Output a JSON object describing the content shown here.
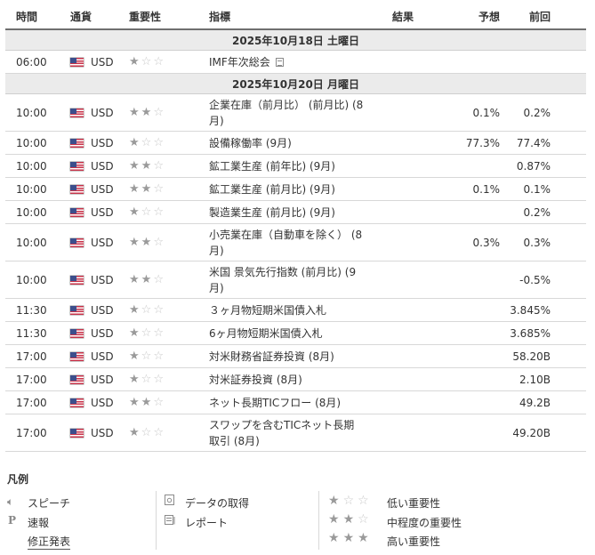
{
  "headers": {
    "time": "時間",
    "currency": "通貨",
    "importance": "重要性",
    "indicator": "指標",
    "actual": "結果",
    "forecast": "予想",
    "previous": "前回"
  },
  "days": [
    {
      "date": "2025年10月18日 土曜日",
      "events": [
        {
          "time": "06:00",
          "currency": "USD",
          "stars": 1,
          "name": [
            "IMF年次総会"
          ],
          "doc": true,
          "actual": "",
          "forecast": "",
          "previous": ""
        }
      ]
    },
    {
      "date": "2025年10月20日 月曜日",
      "events": [
        {
          "time": "10:00",
          "currency": "USD",
          "stars": 2,
          "name": [
            "企業在庫（前月比） (前月比) (8",
            "月)"
          ],
          "actual": "",
          "forecast": "0.1%",
          "previous": "0.2%"
        },
        {
          "time": "10:00",
          "currency": "USD",
          "stars": 1,
          "name": [
            "設備稼働率 (9月)"
          ],
          "actual": "",
          "forecast": "77.3%",
          "previous": "77.4%"
        },
        {
          "time": "10:00",
          "currency": "USD",
          "stars": 2,
          "name": [
            "鉱工業生産 (前年比) (9月)"
          ],
          "actual": "",
          "forecast": "",
          "previous": "0.87%"
        },
        {
          "time": "10:00",
          "currency": "USD",
          "stars": 2,
          "name": [
            "鉱工業生産 (前月比) (9月)"
          ],
          "actual": "",
          "forecast": "0.1%",
          "previous": "0.1%"
        },
        {
          "time": "10:00",
          "currency": "USD",
          "stars": 1,
          "name": [
            "製造業生産 (前月比) (9月)"
          ],
          "actual": "",
          "forecast": "",
          "previous": "0.2%"
        },
        {
          "time": "10:00",
          "currency": "USD",
          "stars": 2,
          "name": [
            "小売業在庫（自動車を除く） (8",
            "月)"
          ],
          "actual": "",
          "forecast": "0.3%",
          "previous": "0.3%"
        },
        {
          "time": "10:00",
          "currency": "USD",
          "stars": 2,
          "name": [
            "米国 景気先行指数 (前月比) (9",
            "月)"
          ],
          "actual": "",
          "forecast": "",
          "previous": "-0.5%"
        },
        {
          "time": "11:30",
          "currency": "USD",
          "stars": 1,
          "name": [
            "３ヶ月物短期米国債入札"
          ],
          "actual": "",
          "forecast": "",
          "previous": "3.845%"
        },
        {
          "time": "11:30",
          "currency": "USD",
          "stars": 1,
          "name": [
            "6ヶ月物短期米国債入札"
          ],
          "actual": "",
          "forecast": "",
          "previous": "3.685%"
        },
        {
          "time": "17:00",
          "currency": "USD",
          "stars": 1,
          "name": [
            "対米財務省証券投資 (8月)"
          ],
          "actual": "",
          "forecast": "",
          "previous": "58.20B"
        },
        {
          "time": "17:00",
          "currency": "USD",
          "stars": 1,
          "name": [
            "対米証券投資 (8月)"
          ],
          "actual": "",
          "forecast": "",
          "previous": "2.10B"
        },
        {
          "time": "17:00",
          "currency": "USD",
          "stars": 2,
          "name": [
            "ネット長期TICフロー (8月)"
          ],
          "actual": "",
          "forecast": "",
          "previous": "49.2B"
        },
        {
          "time": "17:00",
          "currency": "USD",
          "stars": 1,
          "name": [
            "スワップを含むTICネット長期",
            "取引 (8月)"
          ],
          "actual": "",
          "forecast": "",
          "previous": "49.20B"
        }
      ]
    }
  ],
  "legend": {
    "title": "凡例",
    "speech": "スピーチ",
    "preliminary": "速報",
    "revised": "修正発表",
    "data_retrieval": "データの取得",
    "report": "レポート",
    "low": "低い重要性",
    "medium": "中程度の重要性",
    "high": "高い重要性"
  },
  "icons": {
    "speech": "speaker-icon",
    "preliminary": "p-letter-icon",
    "data": "data-icon",
    "report": "report-icon",
    "star": "star-icon"
  }
}
